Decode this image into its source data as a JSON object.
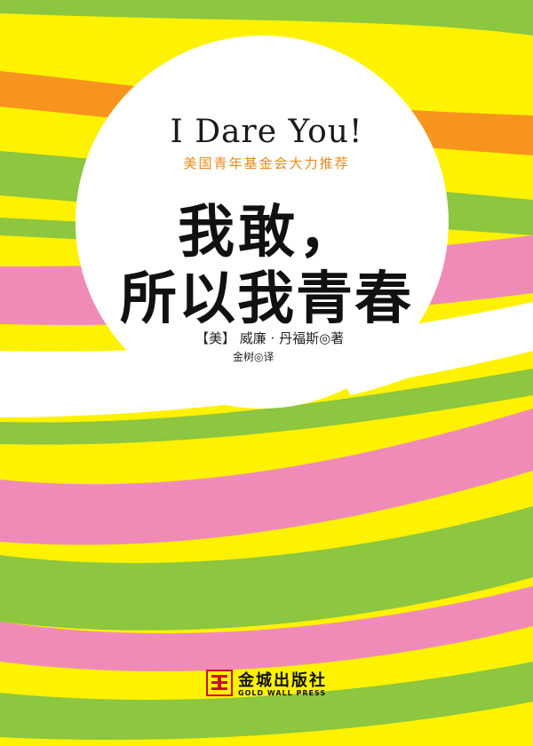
{
  "cover": {
    "english_title": "I Dare You!",
    "tagline": "美国青年基金会大力推荐",
    "title_line1": "我敢，",
    "title_line2": "所以我青春",
    "author": "【美】 威廉 · 丹福斯◎著",
    "translator": "金树◎译",
    "publisher_cn": "金城出版社",
    "publisher_en": "GOLD WALL PRESS"
  },
  "colors": {
    "yellow": "#fff200",
    "green": "#8dc63f",
    "orange": "#f7941d",
    "pink": "#f08bb8",
    "white": "#ffffff",
    "tagline": "#e88a1a",
    "logo": "#c8102e"
  },
  "icons": {
    "publisher_logo": "seal-logo-icon"
  }
}
